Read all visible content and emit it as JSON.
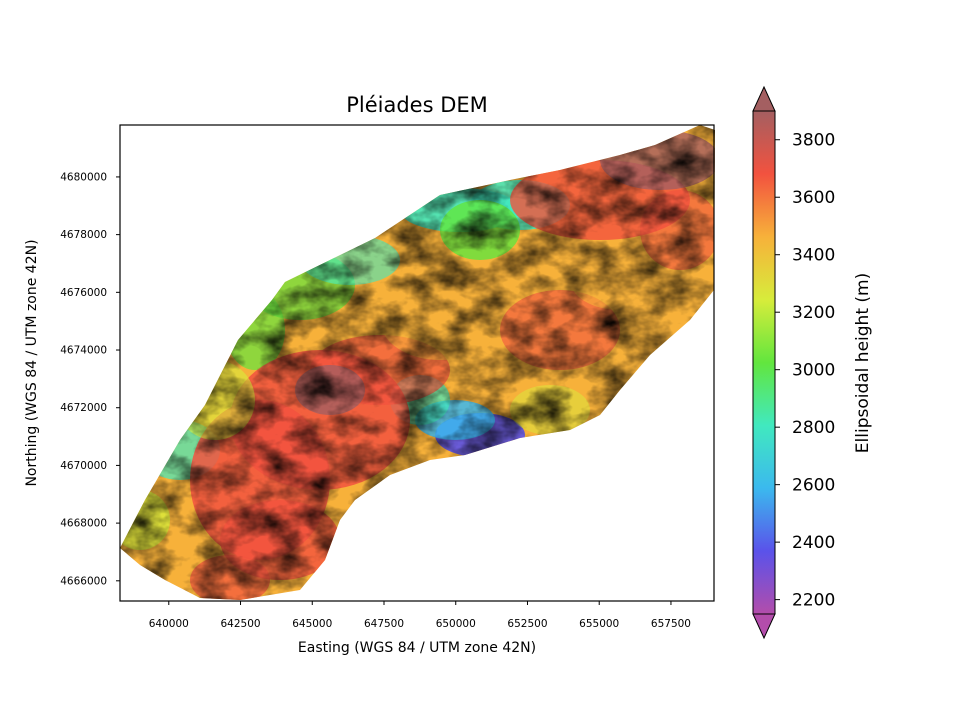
{
  "chart_data": {
    "type": "heatmap",
    "title": "Pléiades DEM",
    "xlabel": "Easting (WGS 84 / UTM zone 42N)",
    "ylabel": "Northing (WGS 84 / UTM zone 42N)",
    "xlim": [
      638300,
      659000
    ],
    "ylim": [
      4665300,
      4681800
    ],
    "x_ticks": [
      640000,
      642500,
      645000,
      647500,
      650000,
      652500,
      655000,
      657500
    ],
    "y_ticks": [
      4666000,
      4668000,
      4670000,
      4672000,
      4674000,
      4676000,
      4678000,
      4680000
    ],
    "grid": false,
    "colorbar": {
      "label": "Ellipsoidal height (m)",
      "range": [
        2150,
        3900
      ],
      "ticks": [
        2200,
        2400,
        2600,
        2800,
        3000,
        3200,
        3400,
        3600,
        3800
      ],
      "extend": "both",
      "colormap": "rainbow with shaded relief",
      "colors": [
        "#b34dab",
        "#5a52ea",
        "#3bb9ee",
        "#41e9bf",
        "#62e63e",
        "#d7ec3b",
        "#f7b13a",
        "#f2523f",
        "#a45f61"
      ]
    }
  }
}
